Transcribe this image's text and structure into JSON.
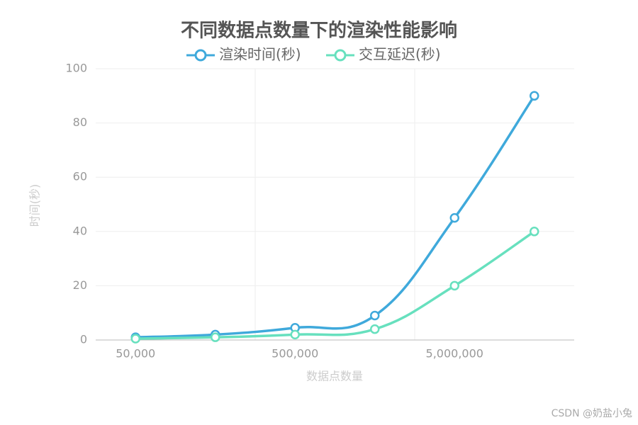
{
  "chart_data": {
    "type": "line",
    "title": "不同数据点数量下的渲染性能影响",
    "categories": [
      "50,000",
      null,
      "500,000",
      null,
      "5,000,000",
      null
    ],
    "series": [
      {
        "name": "渲染时间(秒)",
        "color": "#3fa9db",
        "values": [
          1,
          2,
          4.5,
          9,
          45,
          90
        ]
      },
      {
        "name": "交互延迟(秒)",
        "color": "#67e0be",
        "values": [
          0.5,
          1,
          2,
          4,
          20,
          40
        ]
      }
    ],
    "ylim": [
      0,
      100
    ],
    "yticks": [
      0,
      20,
      40,
      60,
      80,
      100
    ],
    "xlabel": "数据点数量",
    "ylabel": "时间(秒)",
    "grid": true,
    "smooth": true,
    "legend": "top",
    "watermark": "CSDN @奶盐小兔"
  }
}
